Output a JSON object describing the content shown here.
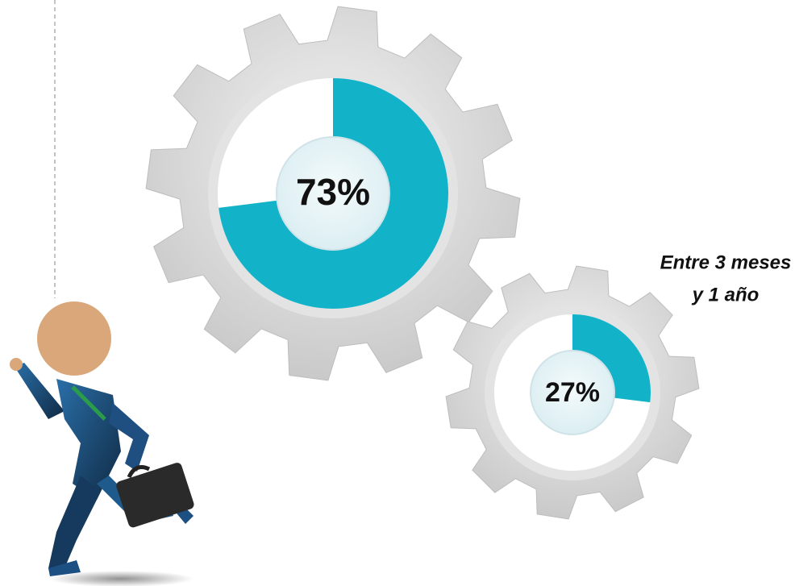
{
  "chart_data": [
    {
      "type": "donut",
      "values": [
        73
      ],
      "value_labels": [
        "73%"
      ],
      "color": "#12b2c9"
    },
    {
      "type": "donut",
      "values": [
        27
      ],
      "value_labels": [
        "27%"
      ],
      "color": "#12b2c9",
      "annotation": [
        "Entre 3 meses",
        "y 1 año"
      ]
    }
  ]
}
